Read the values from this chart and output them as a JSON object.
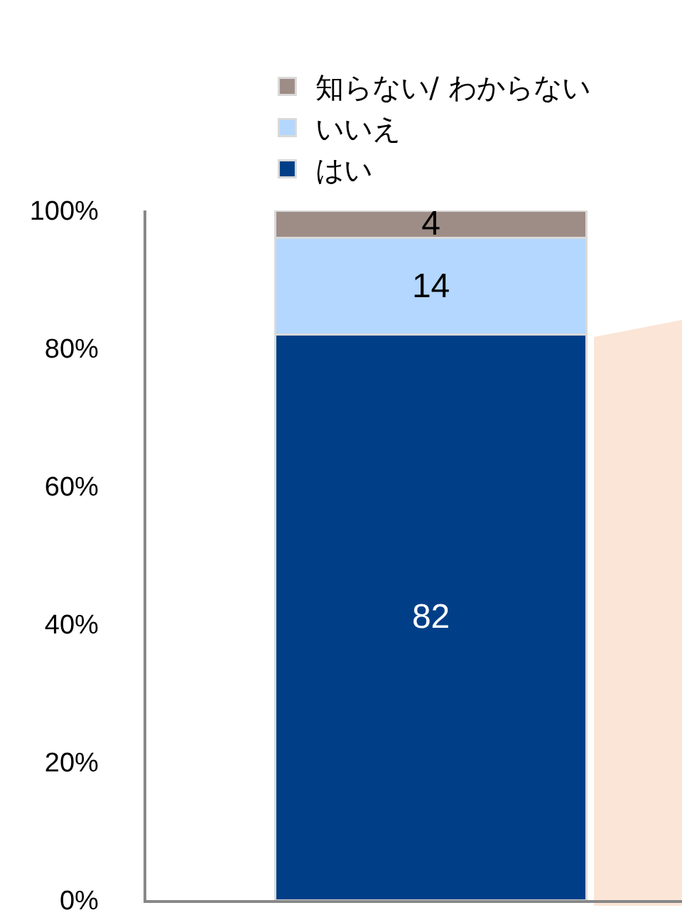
{
  "chart_data": {
    "type": "bar",
    "stacked": true,
    "categories": [
      null
    ],
    "series": [
      {
        "name": "はい",
        "color": "#003f87",
        "values": [
          82
        ]
      },
      {
        "name": "いいえ",
        "color": "#b3d7ff",
        "values": [
          14
        ]
      },
      {
        "name": "知らない/ わからない",
        "color": "#9e8c86",
        "values": [
          4
        ]
      }
    ],
    "ylim": [
      0,
      100
    ],
    "yticks": [
      {
        "value": 0,
        "label": "0%"
      },
      {
        "value": 20,
        "label": "20%"
      },
      {
        "value": 40,
        "label": "40%"
      },
      {
        "value": 60,
        "label": "60%"
      },
      {
        "value": 80,
        "label": "80%"
      },
      {
        "value": 100,
        "label": "100%"
      }
    ],
    "data_labels": true,
    "grid": false,
    "legend": "top left"
  }
}
